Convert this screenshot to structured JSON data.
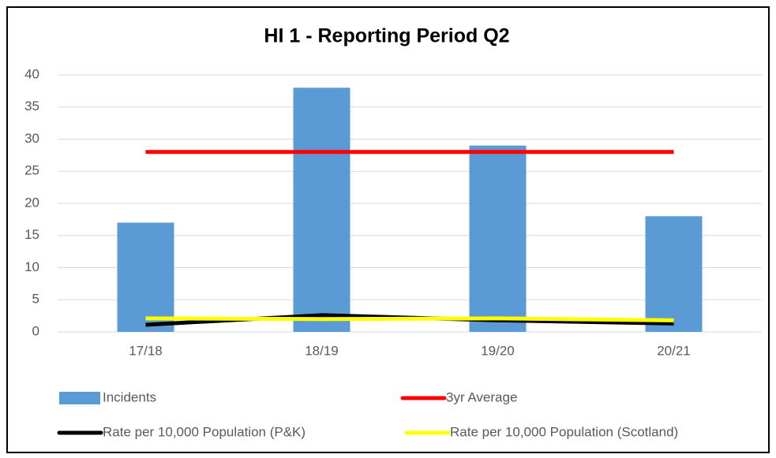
{
  "chart_data": {
    "type": "bar",
    "title": "HI 1 - Reporting Period Q2",
    "categories": [
      "17/18",
      "18/19",
      "19/20",
      "20/21"
    ],
    "series": [
      {
        "name": "Incidents",
        "type": "bar",
        "color": "#5b9bd5",
        "values": [
          17,
          38,
          29,
          18
        ]
      },
      {
        "name": "3yr Average",
        "type": "line",
        "color": "#ff0000",
        "values": [
          28,
          28,
          28,
          28
        ]
      },
      {
        "name": "Rate per 10,000 Population (P&K)",
        "type": "line",
        "color": "#000000",
        "values": [
          1.1,
          2.6,
          1.8,
          1.3
        ]
      },
      {
        "name": "Rate per 10,000 Population (Scotland)",
        "type": "line",
        "color": "#ffff00",
        "values": [
          2.1,
          2.0,
          2.1,
          1.8
        ]
      }
    ],
    "ylim": [
      0,
      40
    ],
    "yticks": [
      0,
      5,
      10,
      15,
      20,
      25,
      30,
      35,
      40
    ],
    "grid": true,
    "legend": "bottom"
  }
}
